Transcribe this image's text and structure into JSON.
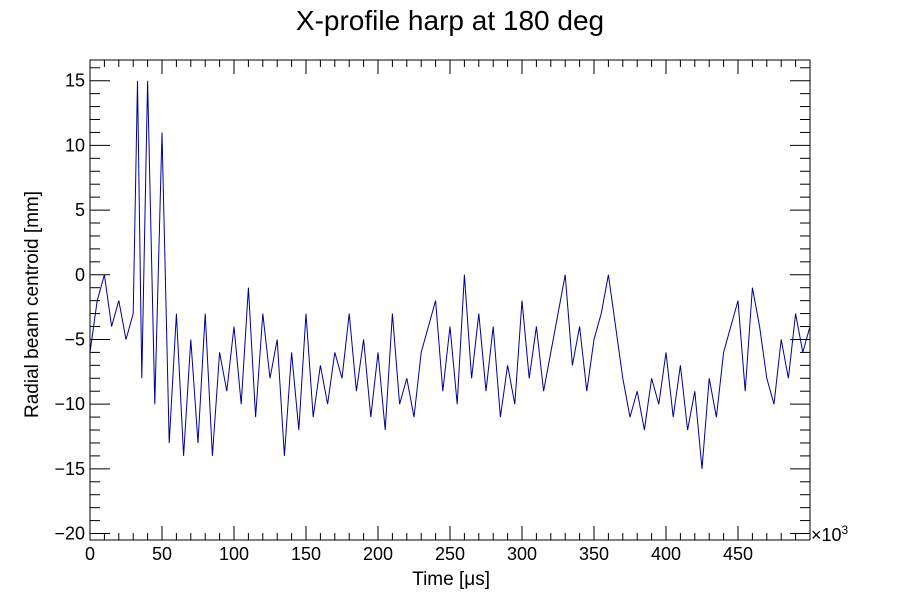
{
  "chart_data": {
    "type": "line",
    "title": "X-profile harp at 180 deg",
    "xlabel": "Time [μs]",
    "ylabel": "Radial beam centroid [mm]",
    "x_multiplier": "×10",
    "x_multiplier_exp": "3",
    "xlim": [
      0,
      500
    ],
    "ylim": [
      -20.5,
      16.6
    ],
    "x_ticks": [
      "0",
      "50",
      "100",
      "150",
      "200",
      "250",
      "300",
      "350",
      "400",
      "450"
    ],
    "y_ticks": [
      "−20",
      "−15",
      "−10",
      "−5",
      "0",
      "5",
      "10",
      "15"
    ],
    "grid": false,
    "line_color": "#000099",
    "series": [
      {
        "x": [
          0,
          5,
          10,
          15,
          20,
          25,
          30,
          33,
          36,
          40,
          45,
          50,
          55,
          60,
          65,
          70,
          75,
          80,
          85,
          90,
          95,
          100,
          105,
          110,
          115,
          120,
          125,
          130,
          135,
          140,
          145,
          150,
          155,
          160,
          165,
          170,
          175,
          180,
          185,
          190,
          195,
          200,
          205,
          210,
          215,
          220,
          225,
          230,
          235,
          240,
          245,
          250,
          255,
          260,
          265,
          270,
          275,
          280,
          285,
          290,
          295,
          300,
          305,
          310,
          315,
          320,
          325,
          330,
          335,
          340,
          345,
          350,
          355,
          360,
          365,
          370,
          375,
          380,
          385,
          390,
          395,
          400,
          405,
          410,
          415,
          420,
          425,
          430,
          435,
          440,
          445,
          450,
          455,
          460,
          465,
          470,
          475,
          480,
          485,
          490,
          495,
          500
        ],
        "y": [
          -6,
          -2,
          0,
          -4,
          -2,
          -5,
          -3,
          15,
          -8,
          15,
          -10,
          11,
          -13,
          -3,
          -14,
          -5,
          -13,
          -3,
          -14,
          -6,
          -9,
          -4,
          -10,
          -1,
          -11,
          -3,
          -8,
          -5,
          -14,
          -6,
          -12,
          -3,
          -11,
          -7,
          -10,
          -6,
          -8,
          -3,
          -9,
          -5,
          -11,
          -6,
          -12,
          -3,
          -10,
          -8,
          -11,
          -6,
          -4,
          -2,
          -9,
          -4,
          -10,
          0,
          -8,
          -3,
          -9,
          -4,
          -11,
          -7,
          -10,
          -2,
          -8,
          -4,
          -9,
          -6,
          -3,
          0,
          -7,
          -4,
          -9,
          -5,
          -3,
          0,
          -4,
          -8,
          -11,
          -9,
          -12,
          -8,
          -10,
          -6,
          -11,
          -7,
          -12,
          -9,
          -15,
          -8,
          -11,
          -6,
          -4,
          -2,
          -9,
          -1,
          -4,
          -8,
          -10,
          -5,
          -8,
          -3,
          -6,
          -4
        ]
      }
    ]
  }
}
